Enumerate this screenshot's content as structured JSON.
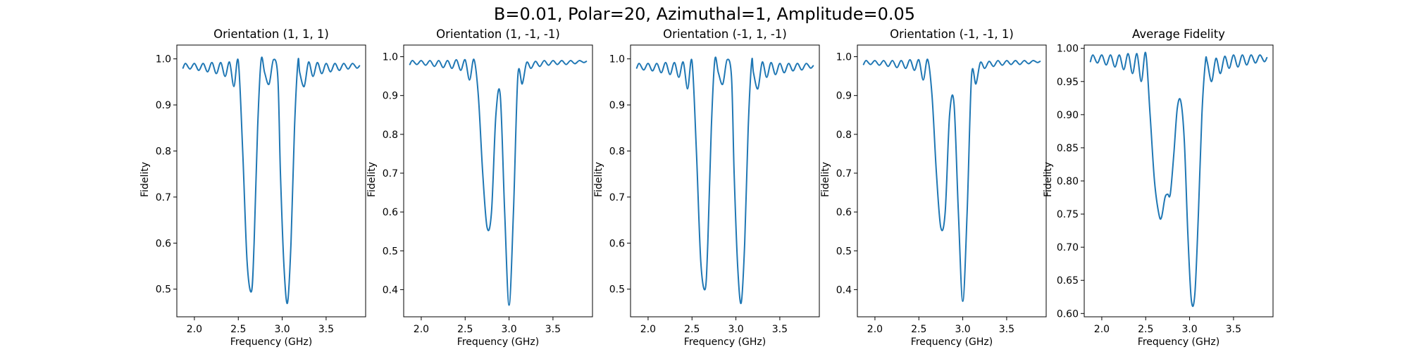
{
  "figure": {
    "title": "B=0.01, Polar=20, Azimuthal=1, Amplitude=0.05"
  },
  "colors": {
    "series": "#1f77b4",
    "background": "#ffffff",
    "axes": "#000000"
  },
  "chart_data": [
    {
      "type": "line",
      "title": "Orientation (1, 1, 1)",
      "xlabel": "Frequency (GHz)",
      "ylabel": "Fidelity",
      "xlim": [
        1.8,
        3.95
      ],
      "ylim": [
        0.44,
        1.03
      ],
      "xticks": [
        "2.0",
        "2.5",
        "3.0",
        "3.5"
      ],
      "yticks": [
        "0.5",
        "0.6",
        "0.7",
        "0.8",
        "0.9",
        "1.0"
      ],
      "grid": false,
      "series": [
        {
          "x": [
            1.87,
            1.9,
            1.95,
            2.0,
            2.05,
            2.1,
            2.15,
            2.2,
            2.25,
            2.3,
            2.35,
            2.4,
            2.45,
            2.5,
            2.55,
            2.6,
            2.65,
            2.68,
            2.72,
            2.76,
            2.8,
            2.85,
            2.9,
            2.95,
            2.98,
            3.02,
            3.06,
            3.1,
            3.14,
            3.18,
            3.2,
            3.25,
            3.3,
            3.35,
            3.4,
            3.45,
            3.5,
            3.55,
            3.6,
            3.65,
            3.7,
            3.75,
            3.8,
            3.85,
            3.88
          ],
          "y": [
            0.98,
            0.99,
            0.978,
            0.99,
            0.975,
            0.99,
            0.972,
            0.992,
            0.968,
            0.992,
            0.962,
            0.993,
            0.94,
            0.995,
            0.8,
            0.56,
            0.495,
            0.6,
            0.85,
            0.998,
            0.97,
            0.945,
            0.998,
            0.96,
            0.75,
            0.55,
            0.47,
            0.6,
            0.85,
            0.995,
            0.97,
            0.94,
            0.993,
            0.962,
            0.992,
            0.968,
            0.99,
            0.972,
            0.99,
            0.975,
            0.99,
            0.978,
            0.99,
            0.98,
            0.985
          ]
        }
      ]
    },
    {
      "type": "line",
      "title": "Orientation (1, -1, -1)",
      "xlabel": "Frequency (GHz)",
      "ylabel": "Fidelity",
      "xlim": [
        1.8,
        3.95
      ],
      "ylim": [
        0.33,
        1.03
      ],
      "xticks": [
        "2.0",
        "2.5",
        "3.0",
        "3.5"
      ],
      "yticks": [
        "0.4",
        "0.5",
        "0.6",
        "0.7",
        "0.8",
        "0.9",
        "1.0"
      ],
      "grid": false,
      "series": [
        {
          "x": [
            1.87,
            1.9,
            1.95,
            2.0,
            2.05,
            2.1,
            2.15,
            2.2,
            2.25,
            2.3,
            2.35,
            2.4,
            2.45,
            2.5,
            2.55,
            2.6,
            2.65,
            2.7,
            2.75,
            2.8,
            2.85,
            2.9,
            2.95,
            3.0,
            3.05,
            3.1,
            3.15,
            3.2,
            3.25,
            3.3,
            3.35,
            3.4,
            3.45,
            3.5,
            3.55,
            3.6,
            3.65,
            3.7,
            3.75,
            3.8,
            3.85,
            3.88
          ],
          "y": [
            0.98,
            0.99,
            0.98,
            0.99,
            0.978,
            0.99,
            0.975,
            0.99,
            0.972,
            0.99,
            0.97,
            0.992,
            0.965,
            0.992,
            0.94,
            0.993,
            0.9,
            0.7,
            0.56,
            0.6,
            0.85,
            0.9,
            0.6,
            0.36,
            0.6,
            0.95,
            0.93,
            0.985,
            0.97,
            0.988,
            0.975,
            0.99,
            0.978,
            0.99,
            0.98,
            0.99,
            0.98,
            0.99,
            0.982,
            0.99,
            0.985,
            0.988
          ]
        }
      ]
    },
    {
      "type": "line",
      "title": "Orientation (-1, 1, -1)",
      "xlabel": "Frequency (GHz)",
      "ylabel": "Fidelity",
      "xlim": [
        1.8,
        3.95
      ],
      "ylim": [
        0.44,
        1.03
      ],
      "xticks": [
        "2.0",
        "2.5",
        "3.0",
        "3.5"
      ],
      "yticks": [
        "0.5",
        "0.6",
        "0.7",
        "0.8",
        "0.9",
        "1.0"
      ],
      "grid": false,
      "series": [
        {
          "x": [
            1.87,
            1.9,
            1.95,
            2.0,
            2.05,
            2.1,
            2.15,
            2.2,
            2.25,
            2.3,
            2.35,
            2.4,
            2.45,
            2.5,
            2.55,
            2.6,
            2.65,
            2.68,
            2.72,
            2.76,
            2.8,
            2.85,
            2.9,
            2.95,
            2.98,
            3.02,
            3.06,
            3.1,
            3.14,
            3.18,
            3.2,
            3.25,
            3.3,
            3.35,
            3.4,
            3.45,
            3.5,
            3.55,
            3.6,
            3.65,
            3.7,
            3.75,
            3.8,
            3.85,
            3.88
          ],
          "y": [
            0.98,
            0.99,
            0.976,
            0.99,
            0.974,
            0.99,
            0.97,
            0.992,
            0.966,
            0.992,
            0.96,
            0.993,
            0.935,
            0.995,
            0.8,
            0.56,
            0.5,
            0.6,
            0.85,
            0.998,
            0.97,
            0.945,
            0.998,
            0.96,
            0.75,
            0.55,
            0.47,
            0.6,
            0.85,
            0.995,
            0.97,
            0.935,
            0.993,
            0.96,
            0.992,
            0.966,
            0.99,
            0.97,
            0.99,
            0.974,
            0.99,
            0.976,
            0.99,
            0.98,
            0.985
          ]
        }
      ]
    },
    {
      "type": "line",
      "title": "Orientation (-1, -1, 1)",
      "xlabel": "Frequency (GHz)",
      "ylabel": "Fidelity",
      "xlim": [
        1.8,
        3.95
      ],
      "ylim": [
        0.33,
        1.03
      ],
      "xticks": [
        "2.0",
        "2.5",
        "3.0",
        "3.5"
      ],
      "yticks": [
        "0.4",
        "0.5",
        "0.6",
        "0.7",
        "0.8",
        "0.9",
        "1.0"
      ],
      "grid": false,
      "series": [
        {
          "x": [
            1.87,
            1.9,
            1.95,
            2.0,
            2.05,
            2.1,
            2.15,
            2.2,
            2.25,
            2.3,
            2.35,
            2.4,
            2.45,
            2.5,
            2.55,
            2.6,
            2.65,
            2.7,
            2.75,
            2.8,
            2.85,
            2.9,
            2.95,
            3.0,
            3.05,
            3.1,
            3.15,
            3.2,
            3.25,
            3.3,
            3.35,
            3.4,
            3.45,
            3.5,
            3.55,
            3.6,
            3.65,
            3.7,
            3.75,
            3.8,
            3.85,
            3.88
          ],
          "y": [
            0.98,
            0.99,
            0.98,
            0.99,
            0.978,
            0.99,
            0.975,
            0.99,
            0.972,
            0.99,
            0.97,
            0.992,
            0.965,
            0.992,
            0.94,
            0.993,
            0.9,
            0.7,
            0.56,
            0.6,
            0.85,
            0.88,
            0.6,
            0.37,
            0.6,
            0.95,
            0.93,
            0.985,
            0.97,
            0.988,
            0.975,
            0.99,
            0.978,
            0.99,
            0.98,
            0.99,
            0.98,
            0.99,
            0.982,
            0.99,
            0.985,
            0.988
          ]
        }
      ]
    },
    {
      "type": "line",
      "title": "Average Fidelity",
      "xlabel": "Frequency (GHz)",
      "ylabel": "Fidelity",
      "xlim": [
        1.8,
        3.95
      ],
      "ylim": [
        0.595,
        1.005
      ],
      "xticks": [
        "2.0",
        "2.5",
        "3.0",
        "3.5"
      ],
      "yticks": [
        "0.60",
        "0.65",
        "0.70",
        "0.75",
        "0.80",
        "0.85",
        "0.90",
        "0.95",
        "1.00"
      ],
      "grid": false,
      "series": [
        {
          "x": [
            1.87,
            1.9,
            1.95,
            2.0,
            2.05,
            2.1,
            2.15,
            2.2,
            2.25,
            2.3,
            2.35,
            2.4,
            2.45,
            2.5,
            2.55,
            2.6,
            2.65,
            2.68,
            2.72,
            2.75,
            2.78,
            2.82,
            2.86,
            2.9,
            2.94,
            2.98,
            3.02,
            3.06,
            3.1,
            3.14,
            3.18,
            3.2,
            3.25,
            3.3,
            3.35,
            3.4,
            3.45,
            3.5,
            3.55,
            3.6,
            3.65,
            3.7,
            3.75,
            3.8,
            3.85,
            3.88
          ],
          "y": [
            0.98,
            0.99,
            0.978,
            0.99,
            0.975,
            0.99,
            0.972,
            0.99,
            0.968,
            0.992,
            0.962,
            0.992,
            0.95,
            0.993,
            0.9,
            0.8,
            0.75,
            0.745,
            0.775,
            0.78,
            0.78,
            0.84,
            0.91,
            0.92,
            0.86,
            0.72,
            0.62,
            0.63,
            0.75,
            0.9,
            0.98,
            0.98,
            0.95,
            0.985,
            0.962,
            0.988,
            0.97,
            0.99,
            0.972,
            0.99,
            0.975,
            0.99,
            0.978,
            0.99,
            0.98,
            0.986
          ]
        }
      ]
    }
  ]
}
